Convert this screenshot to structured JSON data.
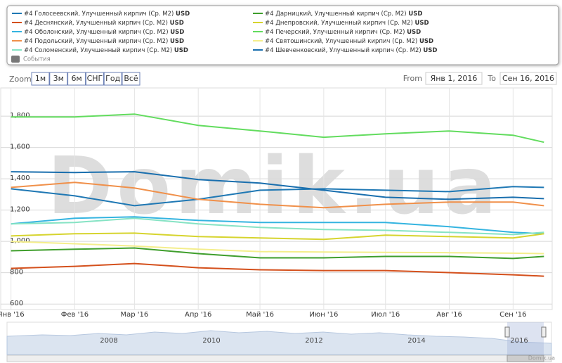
{
  "chart_data": {
    "type": "line",
    "unit": "USD",
    "events_label": "События",
    "watermark": "Domik.ua",
    "x": [
      "2016-01-01",
      "2016-02-01",
      "2016-03-01",
      "2016-04-01",
      "2016-05-01",
      "2016-06-01",
      "2016-07-01",
      "2016-08-01",
      "2016-09-01",
      "2016-09-16"
    ],
    "xlim": [
      "2015-12-27",
      "2016-09-20"
    ],
    "xticks": [
      {
        "value": "2016-01-01",
        "label": "Янв '16"
      },
      {
        "value": "2016-02-01",
        "label": "Фев '16"
      },
      {
        "value": "2016-03-01",
        "label": "Мар '16"
      },
      {
        "value": "2016-04-01",
        "label": "Апр '16"
      },
      {
        "value": "2016-05-01",
        "label": "Май '16"
      },
      {
        "value": "2016-06-01",
        "label": "Июн '16"
      },
      {
        "value": "2016-07-01",
        "label": "Июл '16"
      },
      {
        "value": "2016-08-01",
        "label": "Авг '16"
      },
      {
        "value": "2016-09-01",
        "label": "Сен '16"
      }
    ],
    "ylim": [
      565,
      1980
    ],
    "yticks": [
      600,
      800,
      {
        "value": 1000,
        "label": "1,000"
      },
      {
        "value": 1200,
        "label": "1,200"
      },
      {
        "value": 1400,
        "label": "1,400"
      },
      {
        "value": 1600,
        "label": "1,600"
      },
      {
        "value": 1800,
        "label": "1,800"
      }
    ],
    "grid": true,
    "series": [
      {
        "name": "#4 Голосеевский, Улучшенный кирпич (Ср. M2)",
        "color": "#1f78b4",
        "values": [
          1336,
          1291,
          1228,
          1269,
          1327,
          1336,
          1327,
          1318,
          1350,
          1345
        ]
      },
      {
        "name": "#4 Деснянский, Улучшенный кирпич (Ср. M2)",
        "color": "#d4501c",
        "values": [
          828,
          841,
          859,
          832,
          819,
          814,
          814,
          801,
          787,
          778
        ]
      },
      {
        "name": "#4 Оболонский, Улучшенный кирпич (Ср. M2)",
        "color": "#34b4e0",
        "values": [
          1112,
          1148,
          1157,
          1134,
          1121,
          1121,
          1121,
          1094,
          1058,
          1049
        ]
      },
      {
        "name": "#4 Подольский, Улучшенный кирпич (Ср. M2)",
        "color": "#f0904a",
        "values": [
          1345,
          1377,
          1341,
          1269,
          1237,
          1215,
          1237,
          1251,
          1251,
          1228
        ]
      },
      {
        "name": "#4 Соломенский, Улучшенный кирпич (Ср. M2)",
        "color": "#86e3c4",
        "values": [
          1112,
          1121,
          1148,
          1112,
          1089,
          1076,
          1071,
          1058,
          1044,
          1058
        ]
      },
      {
        "name": "#4 Дарницкий, Улучшенный кирпич (Ср. M2)",
        "color": "#3f9e2c",
        "values": [
          940,
          950,
          958,
          922,
          895,
          895,
          904,
          904,
          891,
          904
        ]
      },
      {
        "name": "#4 Днепровский, Улучшенный кирпич (Ср. M2)",
        "color": "#d6d42e",
        "values": [
          1035,
          1049,
          1053,
          1031,
          1022,
          1013,
          1040,
          1031,
          1022,
          1049
        ]
      },
      {
        "name": "#4 Печерский, Улучшенный кирпич (Ср. M2)",
        "color": "#62dc5e",
        "values": [
          1795,
          1795,
          1813,
          1741,
          1705,
          1665,
          1687,
          1705,
          1678,
          1633
        ]
      },
      {
        "name": "#4 Святошинский, Улучшенный кирпич (Ср. M2)",
        "color": "#f4ee8c",
        "values": [
          1000,
          985,
          970,
          950,
          935,
          932,
          930,
          928,
          925,
          922
        ]
      },
      {
        "name": "#4 Шевченковский, Улучшенный кирпич (Ср. M2)",
        "color": "#1a6fae",
        "values": [
          1445,
          1440,
          1445,
          1395,
          1372,
          1327,
          1282,
          1269,
          1282,
          1273
        ]
      }
    ]
  },
  "ui": {
    "zoom_label": "Zoom",
    "zoom_buttons": [
      "1м",
      "3м",
      "6м",
      "СНГ",
      "Год",
      "Всё"
    ],
    "from_label": "From",
    "from": "Янв 1, 2016",
    "to_label": "To",
    "to": "Сен 16, 2016",
    "navigator_labels": [
      "2008",
      "2010",
      "2012",
      "2014",
      "2016"
    ],
    "credit": "Domik.ua"
  }
}
